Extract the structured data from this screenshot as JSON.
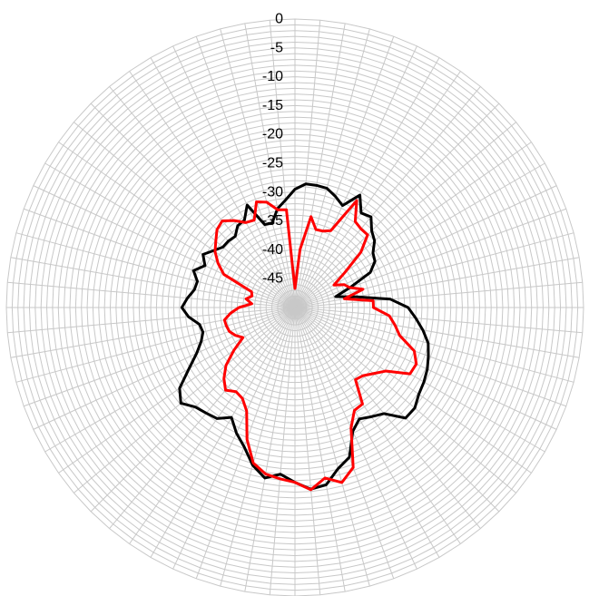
{
  "chart_data": {
    "type": "radar",
    "title": "",
    "radial_axis": {
      "range": [
        -50,
        0
      ],
      "ticks": [
        "0",
        "-5",
        "-10",
        "-15",
        "-20",
        "-25",
        "-30",
        "-35",
        "-40",
        "-45"
      ],
      "minor_step": 1
    },
    "angular_axis": {
      "spokes": 72,
      "step_deg": 5,
      "direction": "clockwise",
      "zero_at": "top"
    },
    "grid": true,
    "legend": "none",
    "series": [
      {
        "color": "#000000",
        "values": [
          -29.5,
          -28.5,
          -28.5,
          -28.6,
          -29.5,
          -30.5,
          -27.5,
          -30.0,
          -29.5,
          -31.2,
          -32.0,
          -33.5,
          -34.0,
          -35.6,
          -39.8,
          -42.7,
          -39.3,
          -33.4,
          -30.4,
          -29.0,
          -27.5,
          -26.1,
          -25.4,
          -24.7,
          -24.2,
          -23.8,
          -22.9,
          -22.9,
          -26.0,
          -26.9,
          -27.7,
          -26.3,
          -22.4,
          -21.1,
          -18.8,
          -18.4,
          -19.7,
          -21.0,
          -20.0,
          -21.7,
          -24.3,
          -26.0,
          -28.0,
          -26.5,
          -26.1,
          -25.6,
          -24.2,
          -25.6,
          -28.8,
          -31.2,
          -32.7,
          -33.5,
          -33.2,
          -31.5,
          -30.4,
          -31.3,
          -32.3,
          -32.5,
          -31.3,
          -32.8,
          -31.6,
          -32.8,
          -33.7,
          -33.7,
          -33.9,
          -32.7,
          -32.5,
          -30.4,
          -34.7,
          -34.8,
          -32.6,
          -31.3
        ]
      },
      {
        "color": "#ff0000",
        "values": [
          -46.7,
          -39.9,
          -34.0,
          -36.0,
          -35.9,
          -35.3,
          -28.6,
          -31.8,
          -32.2,
          -32.2,
          -35.1,
          -39.5,
          -42.2,
          -40.6,
          -39.9,
          -37.8,
          -41.3,
          -36.4,
          -36.4,
          -33.6,
          -32.4,
          -31.2,
          -28.0,
          -26.8,
          -27.0,
          -30.8,
          -32.2,
          -33.3,
          -33.7,
          -29.6,
          -29.4,
          -27.0,
          -20.5,
          -18.6,
          -20.0,
          -18.3,
          -19.7,
          -20.2,
          -20.7,
          -22.1,
          -25.7,
          -30.2,
          -31.8,
          -32.2,
          -31.3,
          -32.6,
          -34.4,
          -37.1,
          -39.6,
          -38.6,
          -37.9,
          -37.7,
          -37.6,
          -38.8,
          -40.3,
          -42.5,
          -41.4,
          -42.3,
          -42.0,
          -36.4,
          -34.6,
          -33.1,
          -32.1,
          -30.9,
          -30.4,
          -31.6,
          -33.0,
          -33.3,
          -30.5,
          -31.1,
          -32.8,
          -33.0
        ]
      }
    ]
  }
}
